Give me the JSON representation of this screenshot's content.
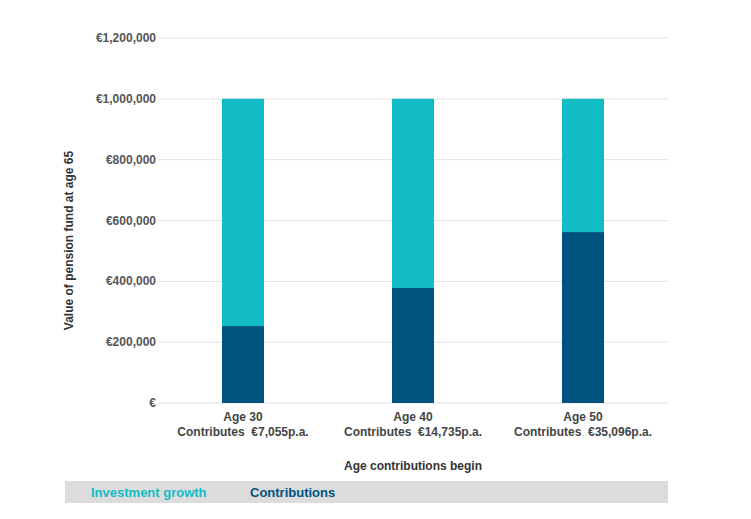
{
  "chart_data": {
    "type": "bar",
    "stacked": true,
    "grid": true,
    "legend": "bottom",
    "x_label": "Age contributions begin",
    "y_label": "Value of pension fund at age 65",
    "categories": [
      "Age 30\nContributes  €7,055p.a.",
      "Age 40\nContributes  €14,735p.a.",
      "Age 50\nContributes  €35,096p.a."
    ],
    "series": [
      {
        "name": "Contributions",
        "color": "#00527f",
        "values": [
          253000,
          378000,
          562000
        ]
      },
      {
        "name": "Investment growth",
        "color": "#12bcc5",
        "values": [
          747000,
          622000,
          438000
        ]
      }
    ],
    "ylim": [
      0,
      1200000
    ],
    "yticks": [
      {
        "value": 0,
        "label": "€"
      },
      {
        "value": 200000,
        "label": "€200,000"
      },
      {
        "value": 400000,
        "label": "€400,000"
      },
      {
        "value": 600000,
        "label": "€600,000"
      },
      {
        "value": 800000,
        "label": "€800,000"
      },
      {
        "value": 1000000,
        "label": "€1,000,000"
      },
      {
        "value": 1200000,
        "label": "€1,200,000"
      }
    ]
  }
}
